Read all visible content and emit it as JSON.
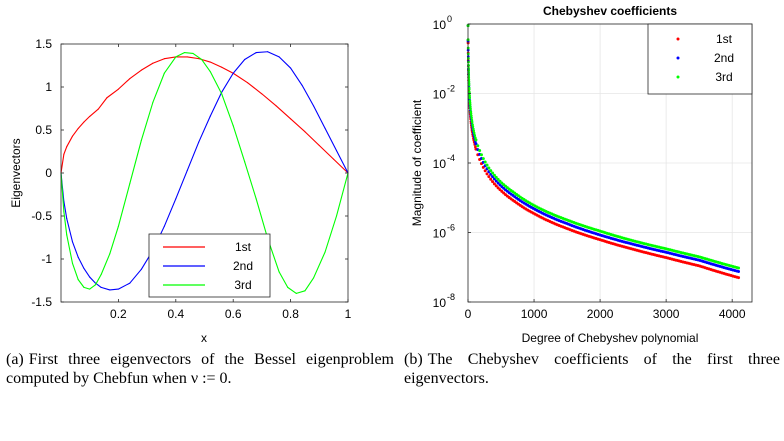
{
  "chart_data": [
    {
      "type": "line",
      "title": "",
      "xlabel": "x",
      "ylabel": "Eigenvectors",
      "xlim": [
        0,
        1
      ],
      "ylim": [
        -1.5,
        1.5
      ],
      "x_ticks": [
        0.2,
        0.4,
        0.6,
        0.8,
        1
      ],
      "x_tick_labels": [
        "0.2",
        "0.4",
        "0.6",
        "0.8",
        "1"
      ],
      "y_ticks": [
        1.5,
        1,
        0.5,
        0,
        -0.5,
        -1,
        -1.5
      ],
      "y_tick_labels": [
        "1.5",
        "1",
        "0.5",
        "0",
        "-0.5",
        "-1",
        "-1.5"
      ],
      "grid": false,
      "legend_position": "bottom-center",
      "series": [
        {
          "name": "1st",
          "color": "#ff0000",
          "x": [
            0,
            0.01,
            0.02,
            0.04,
            0.06,
            0.08,
            0.1,
            0.13,
            0.16,
            0.2,
            0.24,
            0.28,
            0.32,
            0.36,
            0.4,
            0.44,
            0.48,
            0.52,
            0.56,
            0.6,
            0.65,
            0.7,
            0.75,
            0.8,
            0.85,
            0.9,
            0.95,
            1
          ],
          "y": [
            0,
            0.218,
            0.306,
            0.428,
            0.518,
            0.593,
            0.658,
            0.743,
            0.875,
            0.975,
            1.098,
            1.196,
            1.276,
            1.329,
            1.35,
            1.35,
            1.33,
            1.29,
            1.23,
            1.16,
            1.05,
            0.92,
            0.78,
            0.63,
            0.48,
            0.32,
            0.16,
            0
          ]
        },
        {
          "name": "2nd",
          "color": "#0000ff",
          "x": [
            0,
            0.01,
            0.02,
            0.04,
            0.06,
            0.08,
            0.1,
            0.12,
            0.14,
            0.17,
            0.2,
            0.24,
            0.28,
            0.32,
            0.36,
            0.4,
            0.44,
            0.48,
            0.52,
            0.56,
            0.6,
            0.64,
            0.68,
            0.72,
            0.76,
            0.8,
            0.84,
            0.88,
            0.92,
            0.96,
            1
          ],
          "y": [
            0,
            -0.33,
            -0.53,
            -0.8,
            -0.98,
            -1.11,
            -1.21,
            -1.28,
            -1.33,
            -1.36,
            -1.35,
            -1.28,
            -1.12,
            -0.9,
            -0.62,
            -0.3,
            0.03,
            0.36,
            0.66,
            0.94,
            1.16,
            1.32,
            1.4,
            1.41,
            1.35,
            1.22,
            1.02,
            0.78,
            0.52,
            0.26,
            0
          ]
        },
        {
          "name": "3rd",
          "color": "#00ff00",
          "x": [
            0,
            0.01,
            0.02,
            0.04,
            0.06,
            0.08,
            0.1,
            0.12,
            0.14,
            0.17,
            0.2,
            0.24,
            0.28,
            0.32,
            0.36,
            0.4,
            0.43,
            0.46,
            0.49,
            0.52,
            0.56,
            0.6,
            0.64,
            0.68,
            0.72,
            0.76,
            0.79,
            0.82,
            0.85,
            0.88,
            0.92,
            0.96,
            1
          ],
          "y": [
            0,
            -0.45,
            -0.72,
            -1.05,
            -1.24,
            -1.33,
            -1.35,
            -1.3,
            -1.18,
            -0.94,
            -0.62,
            -0.12,
            0.38,
            0.82,
            1.16,
            1.35,
            1.4,
            1.39,
            1.32,
            1.18,
            0.92,
            0.55,
            0.13,
            -0.3,
            -0.76,
            -1.15,
            -1.33,
            -1.4,
            -1.37,
            -1.22,
            -0.92,
            -0.5,
            0
          ]
        }
      ]
    },
    {
      "type": "line",
      "title": "Chebyshev coefficients",
      "xlabel": "Degree of Chebyshev polynomial",
      "ylabel": "Magnitude of coefficient",
      "xlim": [
        0,
        4300
      ],
      "ylim": [
        1e-08,
        1
      ],
      "y_scale": "log",
      "x_ticks": [
        0,
        1000,
        2000,
        3000,
        4000
      ],
      "x_tick_labels": [
        "0",
        "1000",
        "2000",
        "3000",
        "4000"
      ],
      "y_ticks": [
        1,
        0.01,
        0.0001,
        1e-06,
        1e-08
      ],
      "y_tick_labels": [
        {
          "base": "10",
          "exp": "0"
        },
        {
          "base": "10",
          "exp": "-2"
        },
        {
          "base": "10",
          "exp": "-4"
        },
        {
          "base": "10",
          "exp": "-6"
        },
        {
          "base": "10",
          "exp": "-8"
        }
      ],
      "grid": true,
      "marker": "dot",
      "legend_position": "top-right",
      "series": [
        {
          "name": "1st",
          "color": "#ff0000",
          "x": [
            1,
            10,
            20,
            50,
            100,
            200,
            300,
            500,
            700,
            1000,
            1500,
            2000,
            2500,
            3000,
            3500,
            4100
          ],
          "y": [
            0.9,
            0.02,
            0.006,
            0.0012,
            0.00035,
            0.0001,
            4.5e-05,
            1.6e-05,
            8e-06,
            3.5e-06,
            1.3e-06,
            6.2e-07,
            3.3e-07,
            1.9e-07,
            1.1e-07,
            5e-08
          ]
        },
        {
          "name": "2nd",
          "color": "#0000ff",
          "x": [
            1,
            10,
            20,
            50,
            100,
            200,
            300,
            500,
            700,
            1000,
            1500,
            2000,
            2500,
            3000,
            3500,
            4100
          ],
          "y": [
            0.9,
            0.03,
            0.009,
            0.0018,
            0.0005,
            0.00014,
            6.3e-05,
            2.2e-05,
            1.1e-05,
            4.8e-06,
            1.8e-06,
            8.5e-07,
            4.6e-07,
            2.7e-07,
            1.6e-07,
            7.5e-08
          ]
        },
        {
          "name": "3rd",
          "color": "#00ff00",
          "x": [
            1,
            10,
            20,
            50,
            100,
            200,
            300,
            500,
            700,
            1000,
            1500,
            2000,
            2500,
            3000,
            3500,
            4100
          ],
          "y": [
            0.9,
            0.04,
            0.012,
            0.0023,
            0.00065,
            0.00018,
            8e-05,
            2.8e-05,
            1.4e-05,
            6e-06,
            2.3e-06,
            1.1e-06,
            5.8e-07,
            3.4e-07,
            2e-07,
            9.5e-08
          ]
        }
      ]
    }
  ],
  "captions": {
    "a": {
      "tag": "(a)",
      "text": "First three eigenvectors of the Bessel eigenproblem computed by Chebfun when ν := 0."
    },
    "b": {
      "tag": "(b)",
      "text": "The Chebyshev coefficients of the first three eigenvectors."
    }
  }
}
